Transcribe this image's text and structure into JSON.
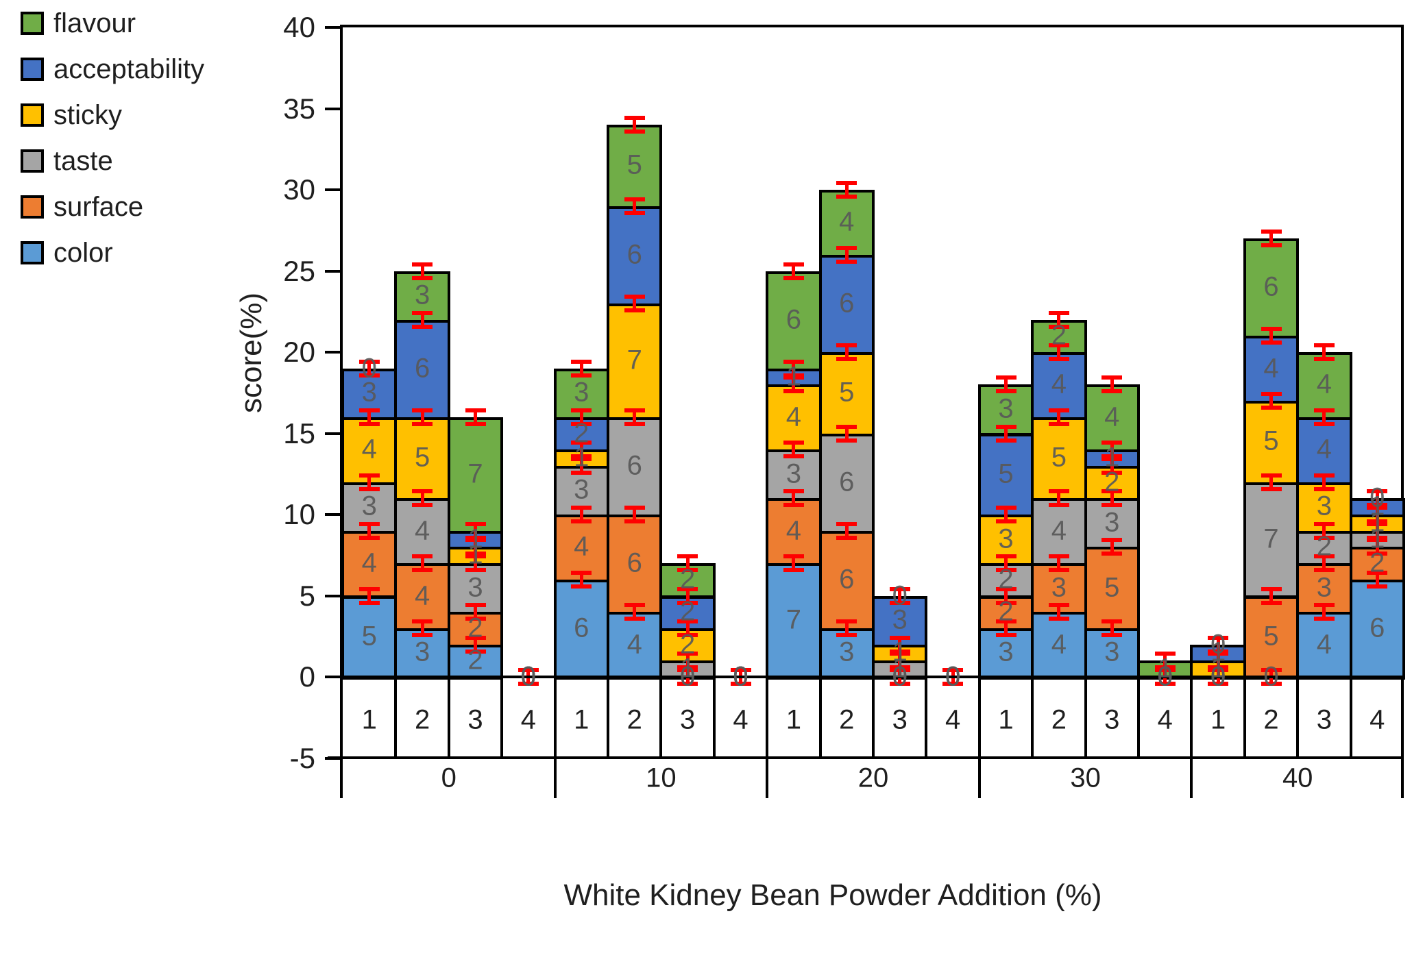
{
  "legend": {
    "items": [
      {
        "label": "flavour",
        "color": "#70AD47"
      },
      {
        "label": "acceptability",
        "color": "#4472C4"
      },
      {
        "label": "sticky",
        "color": "#FFC000"
      },
      {
        "label": "taste",
        "color": "#A5A5A5"
      },
      {
        "label": "surface",
        "color": "#ED7D31"
      },
      {
        "label": "color",
        "color": "#5B9BD5"
      }
    ]
  },
  "chart_data": {
    "type": "bar",
    "stacked": true,
    "title": "",
    "xlabel": "White Kidney Bean Powder Addition (%)",
    "ylabel": "score(%)",
    "ylim": [
      -5,
      40
    ],
    "yticks": [
      40,
      35,
      30,
      25,
      20,
      15,
      10,
      5,
      0,
      -5
    ],
    "grid": false,
    "legend_position": "top-left-outside",
    "stack_order_bottom_to_top": [
      "color",
      "surface",
      "taste",
      "sticky",
      "acceptability",
      "flavour"
    ],
    "series_colors": {
      "color": "#5B9BD5",
      "surface": "#ED7D31",
      "taste": "#A5A5A5",
      "sticky": "#FFC000",
      "acceptability": "#4472C4",
      "flavour": "#70AD47"
    },
    "error_bar_color": "#FF0000",
    "data_label_color": "#595959",
    "replicate_labels": [
      "1",
      "2",
      "3",
      "4"
    ],
    "group_labels": [
      "0",
      "10",
      "20",
      "30",
      "40"
    ],
    "groups": [
      {
        "label": "0",
        "bars": [
          {
            "replicate": "1",
            "color": 5,
            "surface": 4,
            "taste": 3,
            "sticky": 4,
            "acceptability": 3,
            "flavour": 0
          },
          {
            "replicate": "2",
            "color": 3,
            "surface": 4,
            "taste": 4,
            "sticky": 5,
            "acceptability": 6,
            "flavour": 3
          },
          {
            "replicate": "3",
            "color": 2,
            "surface": 2,
            "taste": 3,
            "sticky": 1,
            "acceptability": 1,
            "flavour": 7
          },
          {
            "replicate": "4",
            "color": 0,
            "surface": 0,
            "taste": 0,
            "sticky": 0,
            "acceptability": 0,
            "flavour": 0
          }
        ]
      },
      {
        "label": "10",
        "bars": [
          {
            "replicate": "1",
            "color": 6,
            "surface": 4,
            "taste": 3,
            "sticky": 1,
            "acceptability": 2,
            "flavour": 3
          },
          {
            "replicate": "2",
            "color": 4,
            "surface": 6,
            "taste": 6,
            "sticky": 7,
            "acceptability": 6,
            "flavour": 5
          },
          {
            "replicate": "3",
            "color": 0,
            "surface": 0,
            "taste": 1,
            "sticky": 2,
            "acceptability": 2,
            "flavour": 2
          },
          {
            "replicate": "4",
            "color": 0,
            "surface": 0,
            "taste": 0,
            "sticky": 0,
            "acceptability": 0,
            "flavour": 0
          }
        ]
      },
      {
        "label": "20",
        "bars": [
          {
            "replicate": "1",
            "color": 7,
            "surface": 4,
            "taste": 3,
            "sticky": 4,
            "acceptability": 1,
            "flavour": 6
          },
          {
            "replicate": "2",
            "color": 3,
            "surface": 6,
            "taste": 6,
            "sticky": 5,
            "acceptability": 6,
            "flavour": 4
          },
          {
            "replicate": "3",
            "color": 0,
            "surface": 0,
            "taste": 1,
            "sticky": 1,
            "acceptability": 3,
            "flavour": 0
          },
          {
            "replicate": "4",
            "color": 0,
            "surface": 0,
            "taste": 0,
            "sticky": 0,
            "acceptability": 0,
            "flavour": 0
          }
        ]
      },
      {
        "label": "30",
        "bars": [
          {
            "replicate": "1",
            "color": 3,
            "surface": 2,
            "taste": 2,
            "sticky": 3,
            "acceptability": 5,
            "flavour": 3
          },
          {
            "replicate": "2",
            "color": 4,
            "surface": 3,
            "taste": 4,
            "sticky": 5,
            "acceptability": 4,
            "flavour": 2
          },
          {
            "replicate": "3",
            "color": 3,
            "surface": 5,
            "taste": 3,
            "sticky": 2,
            "acceptability": 1,
            "flavour": 4
          },
          {
            "replicate": "4",
            "color": 0,
            "surface": 0,
            "taste": 0,
            "sticky": 0,
            "acceptability": 0,
            "flavour": 1
          }
        ]
      },
      {
        "label": "40",
        "bars": [
          {
            "replicate": "1",
            "color": 0,
            "surface": 0,
            "taste": 0,
            "sticky": 1,
            "acceptability": 1,
            "flavour": 0
          },
          {
            "replicate": "2",
            "color": 0,
            "surface": 5,
            "taste": 7,
            "sticky": 5,
            "acceptability": 4,
            "flavour": 6
          },
          {
            "replicate": "3",
            "color": 4,
            "surface": 3,
            "taste": 2,
            "sticky": 3,
            "acceptability": 4,
            "flavour": 4
          },
          {
            "replicate": "4",
            "color": 6,
            "surface": 2,
            "taste": 1,
            "sticky": 1,
            "acceptability": 1,
            "flavour": 0
          }
        ]
      }
    ]
  }
}
